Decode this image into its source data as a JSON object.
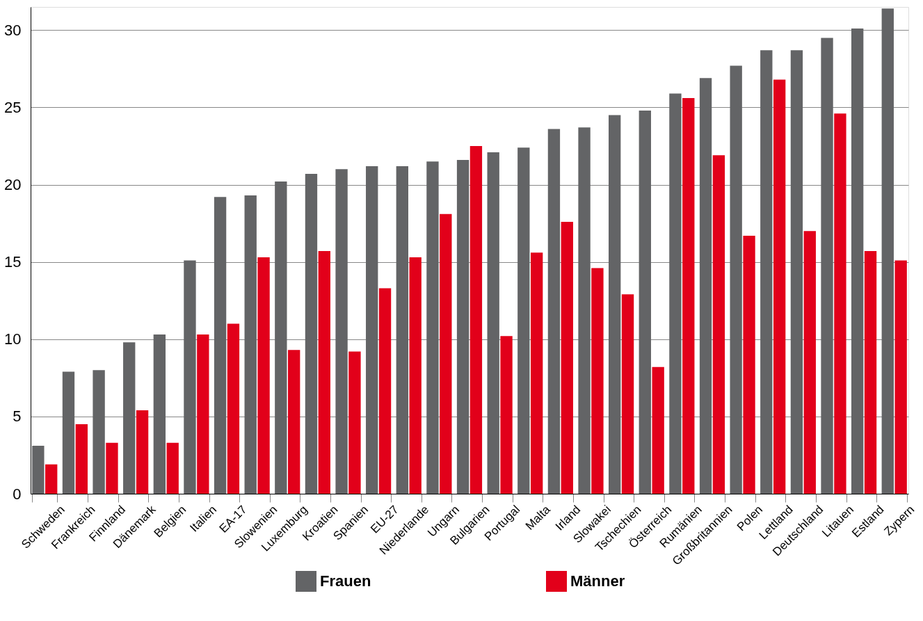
{
  "chart_data": {
    "type": "bar",
    "categories": [
      "Schweden",
      "Frankreich",
      "Finnland",
      "Dänemark",
      "Belgien",
      "Italien",
      "EA-17",
      "Slowenien",
      "Luxemburg",
      "Kroatien",
      "Spanien",
      "EU-27",
      "Niederlande",
      "Ungarn",
      "Bulgarien",
      "Portugal",
      "Malta",
      "Irland",
      "Slowakei",
      "Tschechien",
      "Österreich",
      "Rumänien",
      "Großbritannien",
      "Polen",
      "Lettland",
      "Deutschland",
      "Litauen",
      "Estland",
      "Zypern"
    ],
    "series": [
      {
        "name": "Frauen",
        "color": "#636466",
        "values": [
          3.1,
          7.9,
          8.0,
          9.8,
          10.3,
          15.1,
          19.2,
          19.3,
          20.2,
          20.7,
          21.0,
          21.2,
          21.2,
          21.5,
          21.6,
          22.1,
          22.4,
          23.6,
          23.7,
          24.5,
          24.8,
          25.9,
          26.9,
          27.7,
          28.7,
          28.7,
          29.5,
          30.1,
          31.4
        ]
      },
      {
        "name": "Männer",
        "color": "#e2001a",
        "values": [
          1.9,
          4.5,
          3.3,
          5.4,
          3.3,
          10.3,
          11.0,
          15.3,
          9.3,
          15.7,
          9.2,
          13.3,
          15.3,
          18.1,
          22.5,
          10.2,
          15.6,
          17.6,
          14.6,
          12.9,
          8.2,
          25.6,
          21.9,
          16.7,
          26.8,
          17.0,
          24.6,
          15.7,
          15.1
        ]
      }
    ],
    "ylim": [
      0,
      31.5
    ],
    "yticks": [
      0,
      5,
      10,
      15,
      20,
      25,
      30
    ],
    "grid": "y",
    "legend": "bottom"
  }
}
